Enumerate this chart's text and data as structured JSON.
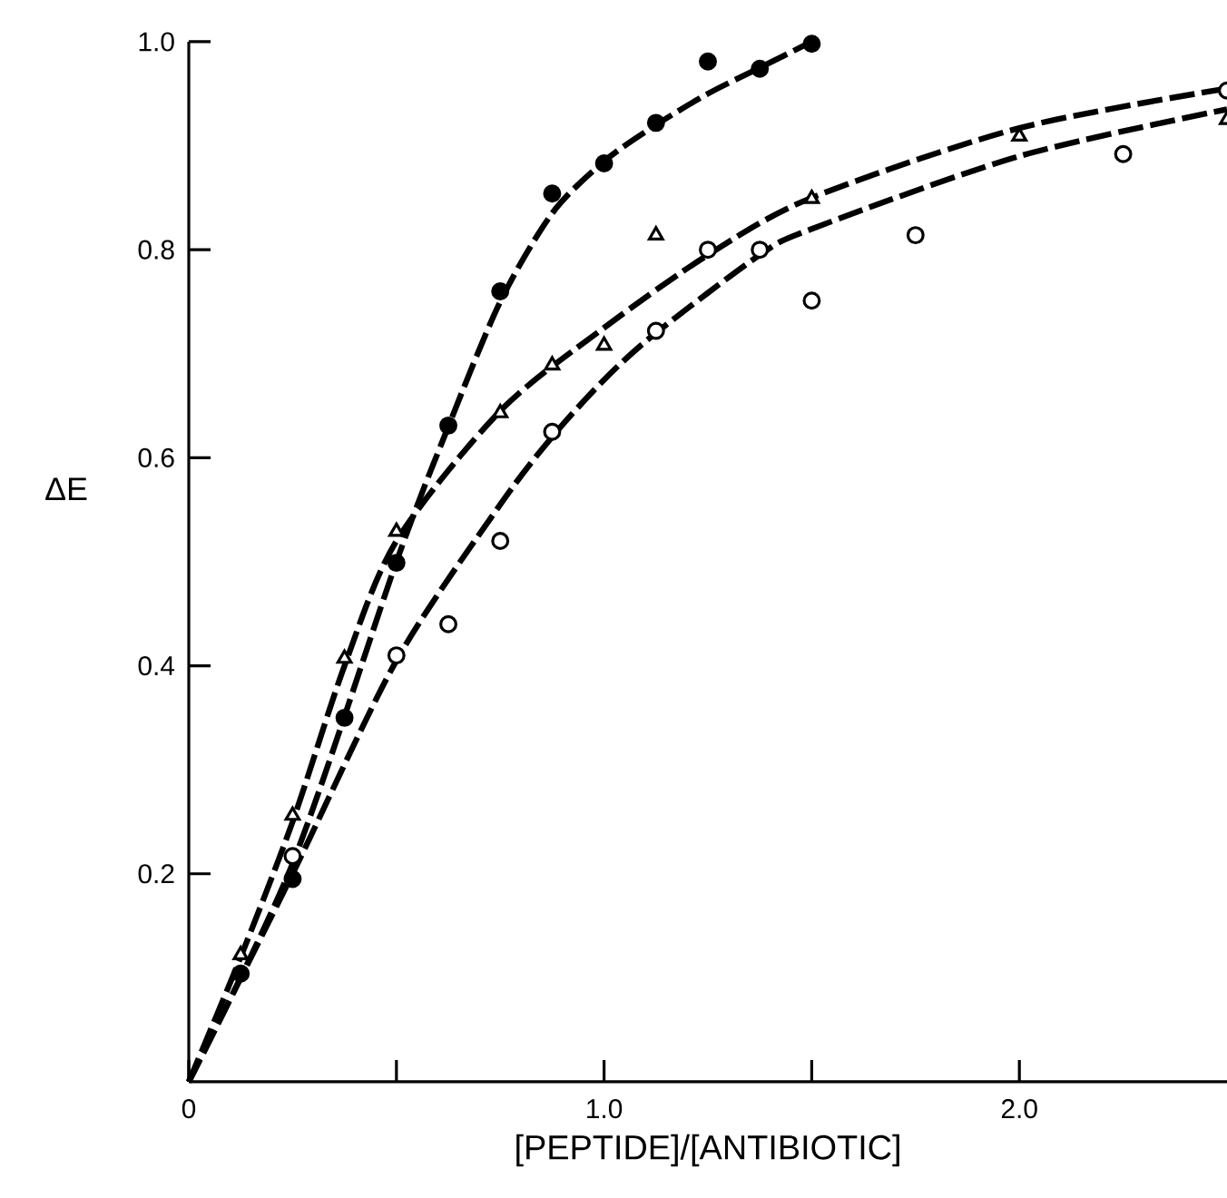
{
  "chart_data": {
    "type": "scatter",
    "xlabel": "[PEPTIDE]/[ANTIBIOTIC]",
    "ylabel": "ΔE",
    "xlim": [
      0,
      2.5
    ],
    "ylim": [
      0,
      1.0
    ],
    "xticks": [
      {
        "value": 0,
        "label": "0"
      },
      {
        "value": 0.5,
        "label": null
      },
      {
        "value": 1,
        "label": "1.0"
      },
      {
        "value": 1.5,
        "label": null
      },
      {
        "value": 2,
        "label": "2.0"
      }
    ],
    "yticks": [
      0.2,
      0.4,
      0.6,
      0.8,
      {
        "value": 1,
        "label": "1.0"
      }
    ],
    "series": [
      {
        "marker": "circle",
        "color": "#000000",
        "x": [
          0.125,
          0.25,
          0.375,
          0.5,
          0.625,
          0.75,
          0.875,
          1.0,
          1.125,
          1.25,
          1.375,
          1.5
        ],
        "values": [
          0.104,
          0.195,
          0.35,
          0.499,
          0.631,
          0.76,
          0.854,
          0.883,
          0.922,
          0.981,
          0.974,
          0.998
        ]
      },
      {
        "marker": "triangle-open",
        "color": "#000000",
        "x": [
          0.125,
          0.25,
          0.375,
          0.5,
          0.75,
          0.875,
          1.0,
          1.125,
          1.5,
          2.0,
          2.5
        ],
        "values": [
          0.122,
          0.256,
          0.407,
          0.529,
          0.643,
          0.689,
          0.708,
          0.814,
          0.849,
          0.909,
          0.925
        ]
      },
      {
        "marker": "circle-open",
        "color": "#000000",
        "x": [
          0.25,
          0.5,
          0.625,
          0.75,
          0.875,
          1.125,
          1.25,
          1.375,
          1.5,
          1.75,
          2.25,
          2.5
        ],
        "values": [
          0.217,
          0.41,
          0.44,
          0.52,
          0.625,
          0.722,
          0.8,
          0.8,
          0.751,
          0.814,
          0.892,
          0.953
        ]
      },
      {
        "type": "line",
        "line_style": "dashed",
        "color": "#000000",
        "x": [
          0,
          0.25,
          0.5,
          0.625,
          0.75,
          0.875,
          1.0,
          1.125,
          1.25,
          1.375,
          1.5
        ],
        "values": [
          0,
          0.21,
          0.5,
          0.63,
          0.75,
          0.835,
          0.885,
          0.92,
          0.95,
          0.975,
          1.0
        ]
      },
      {
        "type": "line",
        "line_style": "dashed",
        "color": "#000000",
        "x": [
          0,
          0.125,
          0.25,
          0.375,
          0.5,
          0.75,
          1.0,
          1.25,
          1.5,
          2.0,
          2.5
        ],
        "values": [
          0,
          0.12,
          0.25,
          0.4,
          0.52,
          0.645,
          0.725,
          0.795,
          0.85,
          0.917,
          0.955
        ]
      },
      {
        "type": "line",
        "line_style": "dashed",
        "color": "#000000",
        "x": [
          0,
          0.25,
          0.5,
          0.75,
          0.875,
          1.0,
          1.125,
          1.375,
          1.5,
          2.0,
          2.5
        ],
        "values": [
          0,
          0.2,
          0.405,
          0.555,
          0.62,
          0.675,
          0.72,
          0.795,
          0.82,
          0.89,
          0.935
        ]
      }
    ]
  }
}
